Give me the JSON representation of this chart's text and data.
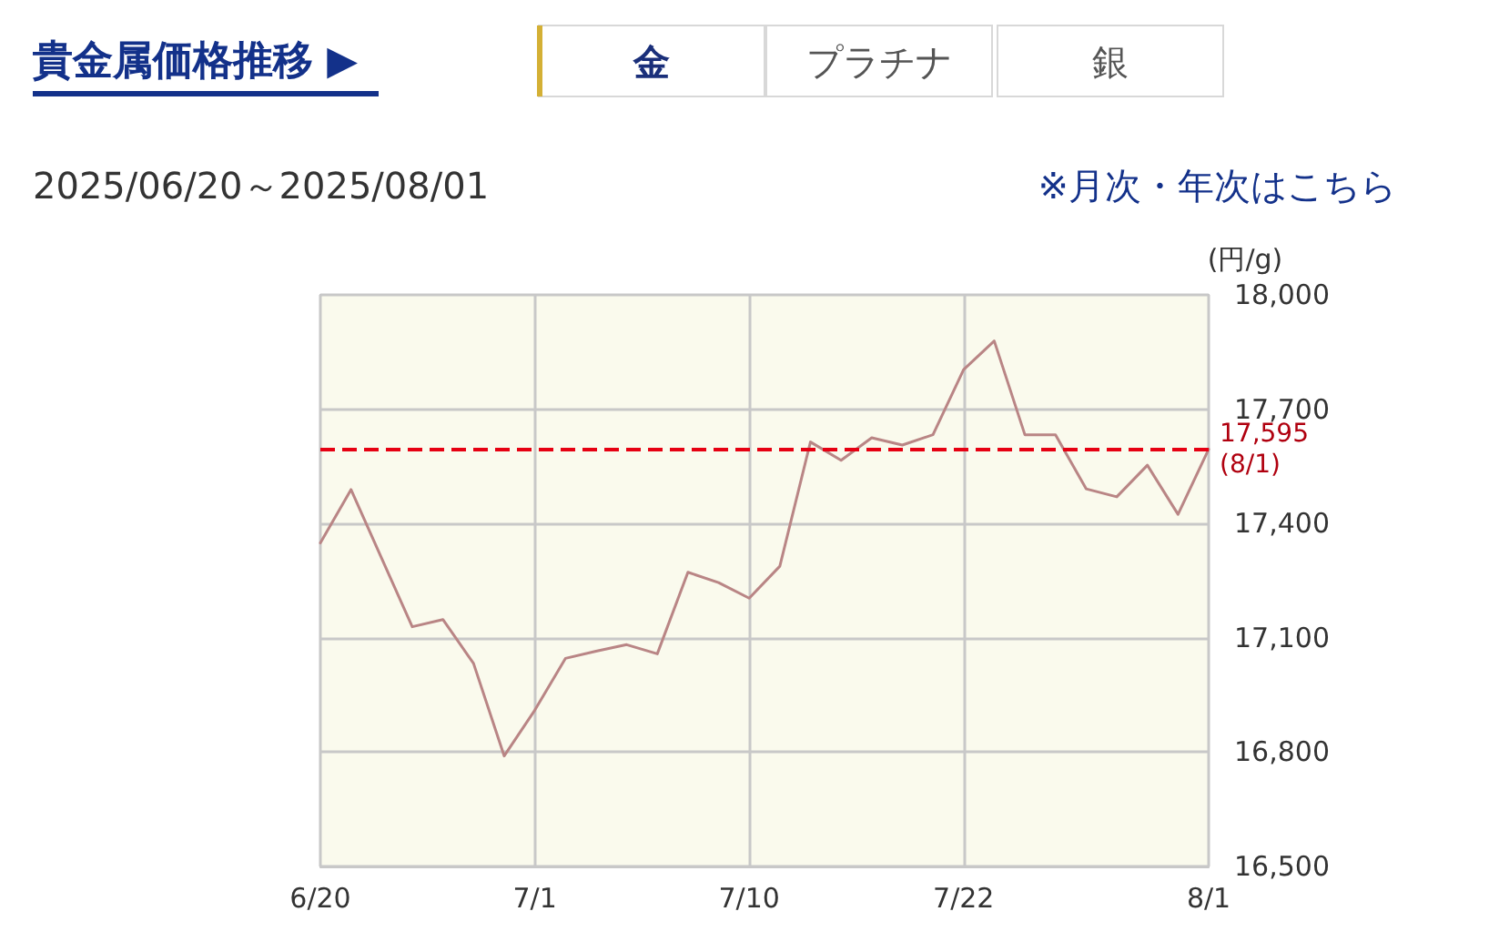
{
  "chart_data": {
    "type": "line",
    "title": "貴金属価格推移 ▶",
    "subtitle": "2025/06/20～2025/08/01",
    "ylabel": "(円/g)",
    "annotations": [
      "金",
      "プラチナ",
      "銀",
      "※月次・年次はこちら"
    ],
    "categories": [
      "6/20",
      null,
      null,
      null,
      null,
      null,
      null,
      "7/1",
      null,
      null,
      null,
      null,
      null,
      null,
      "7/10",
      null,
      null,
      null,
      null,
      null,
      null,
      "7/22",
      null,
      null,
      null,
      null,
      null,
      null,
      null,
      "8/1"
    ],
    "series": [
      {
        "color": "#b98585",
        "values": [
          17349,
          17489,
          17309,
          17129,
          17148,
          17033,
          16790,
          16910,
          17046,
          17065,
          17082,
          17058,
          17272,
          17245,
          17204,
          17288,
          17614,
          17566,
          17625,
          17606,
          17633,
          17804,
          17879,
          17633,
          17633,
          17491,
          17470,
          17553,
          17424,
          17595
        ]
      }
    ],
    "ylim": [
      16500,
      18000
    ],
    "yticks": [
      {
        "value": 16500,
        "label": "16,500"
      },
      {
        "value": 16800,
        "label": "16,800"
      },
      {
        "value": 17100,
        "label": "17,100"
      },
      {
        "value": 17400,
        "label": "17,400"
      },
      {
        "value": 17700,
        "label": "17,700"
      },
      {
        "value": 18000,
        "label": "18,000"
      }
    ],
    "ref_lines": [
      {
        "axis": "y",
        "value": 17595,
        "label": "17,595\n(8/1)",
        "color": "#e60012",
        "line_style": "dashed"
      }
    ],
    "grid": true,
    "marker": "none",
    "line_style": "solid"
  }
}
